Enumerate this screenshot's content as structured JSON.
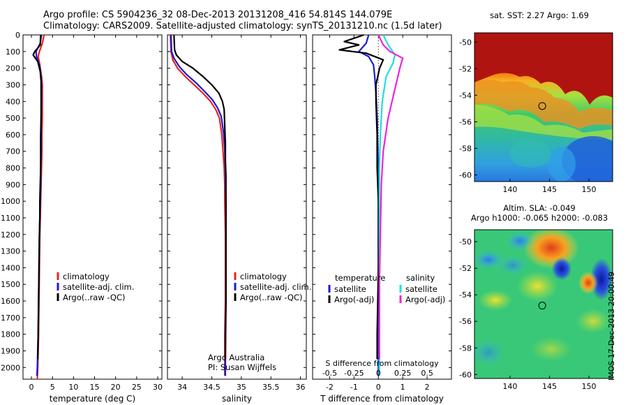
{
  "header": {
    "line1": "Argo profile: CS 5904236_32 08-Dec-2013 20131208_416 54.814S 144.079E",
    "line2": "Climatology: CARS2009. Satellite-adjusted climatology: synTS_20131210.nc (1.5d later)"
  },
  "stamp": "IMOS 17-Dec-2013 20:00:49",
  "colors": {
    "climatology": "#e8231d",
    "satellite": "#1a1ad6",
    "argo": "#000000",
    "sat_salinity": "#22dddd",
    "argo_salinity": "#ee22dd"
  },
  "chart_data": [
    {
      "type": "line",
      "xlabel": "temperature (deg C)",
      "ylabel": "",
      "xlim": [
        -2,
        31
      ],
      "ylim": [
        2070,
        0
      ],
      "xticks": [
        0,
        5,
        10,
        15,
        20,
        25,
        30
      ],
      "yticks": [
        0,
        100,
        200,
        300,
        400,
        500,
        600,
        700,
        800,
        900,
        1000,
        1100,
        1200,
        1300,
        1400,
        1500,
        1600,
        1700,
        1800,
        1900,
        2000
      ],
      "legend": [
        "climatology",
        "satellite-adj. clim.",
        "Argo(..raw -QC)"
      ],
      "legend_position": "lower-right",
      "series": [
        {
          "name": "climatology",
          "color": "#e8231d",
          "x": [
            3.0,
            2.6,
            1.9,
            1.6,
            2.0,
            2.4,
            2.6,
            2.6,
            2.6,
            2.5,
            2.5,
            2.4,
            2.3,
            2.2,
            2.1,
            2.0,
            1.9,
            1.8,
            1.7,
            1.6,
            1.5,
            1.4
          ],
          "y": [
            0,
            50,
            100,
            130,
            180,
            250,
            300,
            400,
            500,
            600,
            700,
            800,
            900,
            1000,
            1100,
            1200,
            1400,
            1600,
            1800,
            1900,
            2000,
            2070
          ]
        },
        {
          "name": "satellite-adj. clim.",
          "color": "#1a1ad6",
          "x": [
            2.4,
            2.1,
            1.1,
            1.2,
            1.9,
            2.3,
            2.4,
            2.4,
            2.3,
            2.3,
            2.3,
            2.2,
            2.2,
            2.1,
            2.0,
            1.9,
            1.8,
            1.7,
            1.6,
            1.5,
            1.4,
            1.3
          ],
          "y": [
            0,
            50,
            100,
            130,
            180,
            250,
            300,
            400,
            500,
            600,
            700,
            800,
            900,
            1000,
            1100,
            1200,
            1400,
            1600,
            1800,
            1900,
            2000,
            2050
          ]
        },
        {
          "name": "Argo(..raw -QC)",
          "color": "#000000",
          "x": [
            2.2,
            2.1,
            0.8,
            0.4,
            1.5,
            2.1,
            2.3,
            2.3,
            2.3,
            2.2,
            2.2,
            2.2,
            2.1,
            2.0,
            2.0,
            1.9,
            1.8,
            1.7,
            1.6,
            1.5
          ],
          "y": [
            0,
            60,
            100,
            120,
            160,
            220,
            280,
            400,
            500,
            600,
            700,
            800,
            900,
            1000,
            1100,
            1200,
            1400,
            1600,
            1800,
            1950
          ]
        }
      ]
    },
    {
      "type": "line",
      "xlabel": "salinity",
      "ylabel": "",
      "xlim": [
        33.75,
        36.1
      ],
      "ylim": [
        2070,
        0
      ],
      "xticks": [
        34,
        34.5,
        35,
        35.5,
        36
      ],
      "xticklabels": [
        "34",
        "34.5",
        "35",
        "35.5",
        "36"
      ],
      "legend": [
        "climatology",
        "satellite-adj. clim.",
        "Argo(..raw -QC)"
      ],
      "legend_position": "lower-right",
      "annotation": [
        "Argo Australia",
        "PI: Susan Wijffels"
      ],
      "series": [
        {
          "name": "climatology",
          "color": "#e8231d",
          "x": [
            33.8,
            33.81,
            33.84,
            33.92,
            34.05,
            34.2,
            34.35,
            34.48,
            34.57,
            34.63,
            34.67,
            34.69,
            34.71,
            34.72,
            34.72,
            34.73,
            34.73,
            34.73,
            34.72,
            34.72
          ],
          "y": [
            0,
            100,
            150,
            200,
            250,
            300,
            350,
            400,
            450,
            500,
            600,
            700,
            800,
            900,
            1000,
            1200,
            1400,
            1600,
            1800,
            2050
          ]
        },
        {
          "name": "satellite-adj. clim.",
          "color": "#1a1ad6",
          "x": [
            33.81,
            33.82,
            33.86,
            33.95,
            34.08,
            34.24,
            34.38,
            34.51,
            34.6,
            34.66,
            34.7,
            34.72,
            34.73,
            34.73,
            34.74,
            34.74,
            34.74,
            34.74,
            34.73,
            34.73
          ],
          "y": [
            0,
            100,
            140,
            190,
            240,
            290,
            340,
            390,
            440,
            490,
            590,
            690,
            800,
            900,
            1000,
            1200,
            1400,
            1600,
            1800,
            2050
          ]
        },
        {
          "name": "Argo(..raw -QC)",
          "color": "#000000",
          "x": [
            33.86,
            33.87,
            33.9,
            34.0,
            34.18,
            34.35,
            34.5,
            34.62,
            34.68,
            34.71,
            34.72,
            34.73,
            34.73,
            34.74,
            34.74,
            34.74,
            34.74,
            34.74,
            34.73
          ],
          "y": [
            0,
            90,
            120,
            160,
            200,
            250,
            300,
            350,
            400,
            450,
            550,
            650,
            750,
            850,
            1000,
            1200,
            1400,
            1600,
            1950
          ]
        }
      ]
    },
    {
      "type": "line",
      "xlabel": "T difference from climatology",
      "xlabel_top": "S difference from climatology",
      "ylabel": "",
      "xlim": [
        -2.7,
        3.0
      ],
      "ylim": [
        2070,
        0
      ],
      "xticks": [
        -2,
        -1,
        0,
        1,
        2
      ],
      "xticklabels": [
        "-2",
        "-1",
        "0",
        "1",
        "2"
      ],
      "s_xlim": [
        -0.675,
        0.75
      ],
      "s_xticks": [
        -0.5,
        -0.25,
        0,
        0.25,
        0.5
      ],
      "s_xticklabels": [
        "-0.5",
        "-0.25",
        "0",
        "0.25",
        "0.5"
      ],
      "legend_left_title": "temperature",
      "legend_right_title": "salinity",
      "legend": [
        "satellite",
        "Argo(-adj)",
        "satellite",
        "Argo(-adj)"
      ],
      "series": [
        {
          "name": "satellite",
          "color": "#1a1ad6",
          "x": [
            -0.4,
            -0.5,
            -0.8,
            -0.4,
            -0.2,
            -0.15,
            -0.1,
            -0.05,
            -0.02,
            0,
            0,
            0,
            0,
            0
          ],
          "y": [
            0,
            50,
            100,
            130,
            180,
            250,
            350,
            500,
            700,
            900,
            1200,
            1500,
            1800,
            2050
          ]
        },
        {
          "name": "Argo(-adj)",
          "color": "#000000",
          "x": [
            -0.6,
            -1.4,
            -0.8,
            -1.6,
            -0.5,
            0.2,
            0.05,
            -0.1,
            -0.1,
            -0.05,
            -0.05,
            0,
            0,
            -0.05,
            -0.05
          ],
          "y": [
            0,
            40,
            60,
            90,
            110,
            150,
            200,
            300,
            400,
            600,
            800,
            1000,
            1400,
            1800,
            1950
          ]
        },
        {
          "name": "satellite",
          "color": "#22dddd",
          "x": [
            0.05,
            0.1,
            0.17,
            0.15,
            0.08,
            0.04,
            0.02,
            0.01,
            0.01,
            0.01,
            0.01,
            0.01
          ],
          "y": [
            0,
            60,
            120,
            170,
            250,
            400,
            600,
            800,
            1000,
            1400,
            1800,
            2050
          ]
        },
        {
          "name": "Argo(-adj)",
          "color": "#ee22dd",
          "x": [
            0.0,
            0.05,
            0.12,
            0.25,
            0.22,
            0.18,
            0.1,
            0.05,
            0.03,
            0.02,
            0.01,
            0.01,
            0.01
          ],
          "y": [
            0,
            60,
            100,
            140,
            200,
            300,
            500,
            700,
            900,
            1200,
            1500,
            1800,
            1950
          ]
        }
      ]
    },
    {
      "type": "heatmap",
      "title": "sat. SST: 2.27 Argo: 1.69",
      "xlim": [
        135.5,
        153
      ],
      "ylim": [
        -60.5,
        -49.3
      ],
      "xticks": [
        140,
        145,
        150
      ],
      "yticks": [
        -50,
        -52,
        -54,
        -56,
        -58,
        -60
      ],
      "marker": {
        "lon": 144.079,
        "lat": -54.814
      }
    },
    {
      "type": "heatmap",
      "title": "Altim. SLA: -0.049",
      "subtitle": "Argo h1000: -0.065 h2000: -0.083",
      "xlim": [
        135.5,
        153
      ],
      "ylim": [
        -60.3,
        -49.1
      ],
      "xticks": [
        140,
        145,
        150
      ],
      "yticks": [
        -50,
        -52,
        -54,
        -56,
        -58,
        -60
      ],
      "marker": {
        "lon": 144.079,
        "lat": -54.814
      }
    }
  ]
}
